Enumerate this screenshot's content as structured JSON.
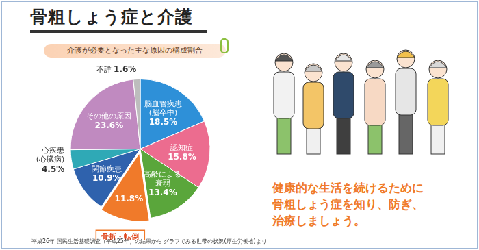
{
  "chart_data": {
    "type": "pie",
    "title": "骨粗しょう症と介護",
    "subtitle": "介護が必要となった主な原因の構成割合",
    "categories": [
      "脳血管疾患\n(脳卒中)",
      "認知症",
      "高齢による\n衰弱",
      "骨折・転倒",
      "関節疾患",
      "心疾患\n(心臓病)",
      "その他の原因",
      "不詳"
    ],
    "values": [
      18.5,
      15.8,
      13.4,
      11.8,
      10.9,
      4.5,
      23.6,
      1.6
    ],
    "value_labels": [
      "18.5%",
      "15.8%",
      "13.4%",
      "11.8%",
      "10.9%",
      "4.5%",
      "23.6%",
      "1.6%"
    ],
    "colors": [
      "#2e90d8",
      "#ec6c8f",
      "#5aa63b",
      "#f07a2a",
      "#2f62ad",
      "#2fa9b6",
      "#c08ac0",
      "#bdbdbd"
    ],
    "data_labels": true,
    "message": [
      "健康的な生活を続けるために",
      "骨粗しょう症を知り、防ぎ、",
      "治療しましょう。"
    ],
    "source": "平成26年 国民生活基礎調査（平成25年）の結果から グラフでみる世帯の状況(厚生労働省)より"
  }
}
